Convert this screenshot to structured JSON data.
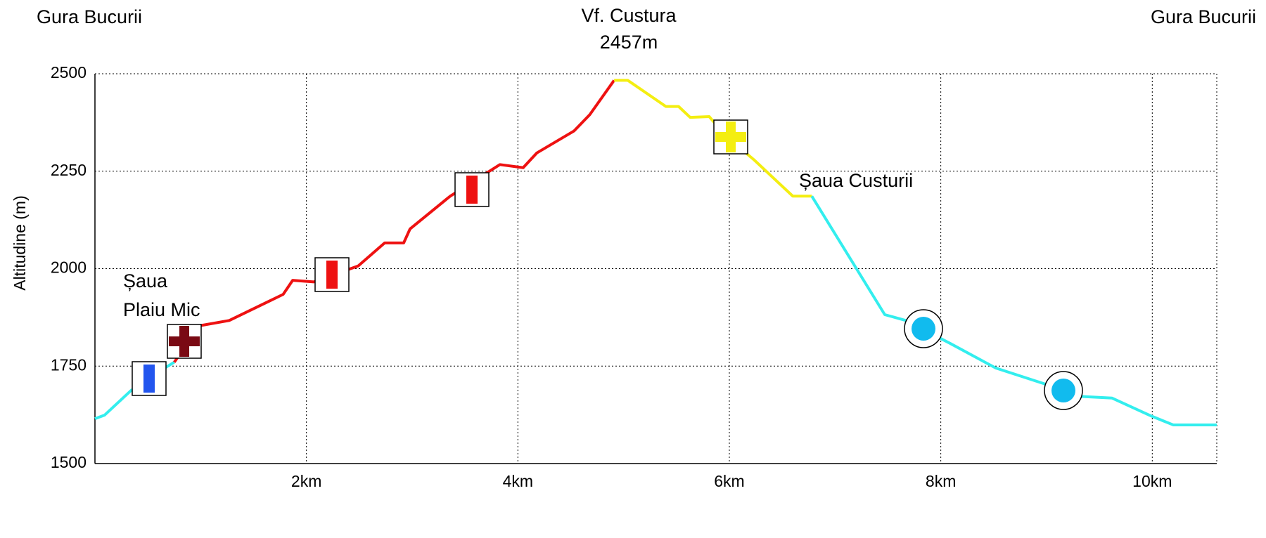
{
  "chart_data": {
    "type": "line",
    "ylabel": "Altitudine (m)",
    "xlim": [
      0,
      10.61
    ],
    "ylim": [
      1500,
      2500
    ],
    "xticks": [
      {
        "value": 2,
        "label": "2km"
      },
      {
        "value": 4,
        "label": "4km"
      },
      {
        "value": 6,
        "label": "6km"
      },
      {
        "value": 8,
        "label": "8km"
      },
      {
        "value": 10,
        "label": "10km"
      }
    ],
    "yticks": [
      1500,
      1750,
      2000,
      2250,
      2500
    ],
    "grid": true,
    "series": [
      {
        "color": "#33eeee",
        "x": [
          0,
          0.09,
          0.34,
          0.6,
          0.75
        ],
        "values": [
          1615,
          1624,
          1687,
          1735,
          1760
        ]
      },
      {
        "color": "#ee1111",
        "x": [
          0.75,
          1.0,
          1.27,
          1.78,
          1.87,
          2.07,
          2.49,
          2.74,
          2.92,
          2.98,
          3.36,
          3.83,
          4.05,
          4.18,
          4.53,
          4.68,
          4.91
        ],
        "values": [
          1760,
          1854,
          1867,
          1934,
          1970,
          1966,
          2007,
          2066,
          2066,
          2102,
          2186,
          2267,
          2259,
          2297,
          2353,
          2395,
          2483
        ]
      },
      {
        "color": "#f4ee11",
        "x": [
          4.91,
          5.04,
          5.4,
          5.52,
          5.63,
          5.81,
          5.96,
          6.23,
          6.6,
          6.78
        ],
        "values": [
          2483,
          2483,
          2416,
          2416,
          2388,
          2390,
          2342,
          2280,
          2186,
          2186
        ]
      },
      {
        "color": "#33eeee",
        "x": [
          6.78,
          7.47,
          7.67,
          8.09,
          8.52,
          9.18,
          9.33,
          9.62,
          9.99,
          10.2,
          10.61
        ],
        "values": [
          2186,
          1882,
          1867,
          1808,
          1745,
          1687,
          1672,
          1668,
          1622,
          1599,
          1599
        ]
      }
    ],
    "annotations": [
      "Gura Bucurii",
      "Vf. Custura",
      "2457m",
      "Gura Bucurii",
      "Șaua Custurii",
      "Șaua",
      "Plaiu Mic"
    ]
  }
}
